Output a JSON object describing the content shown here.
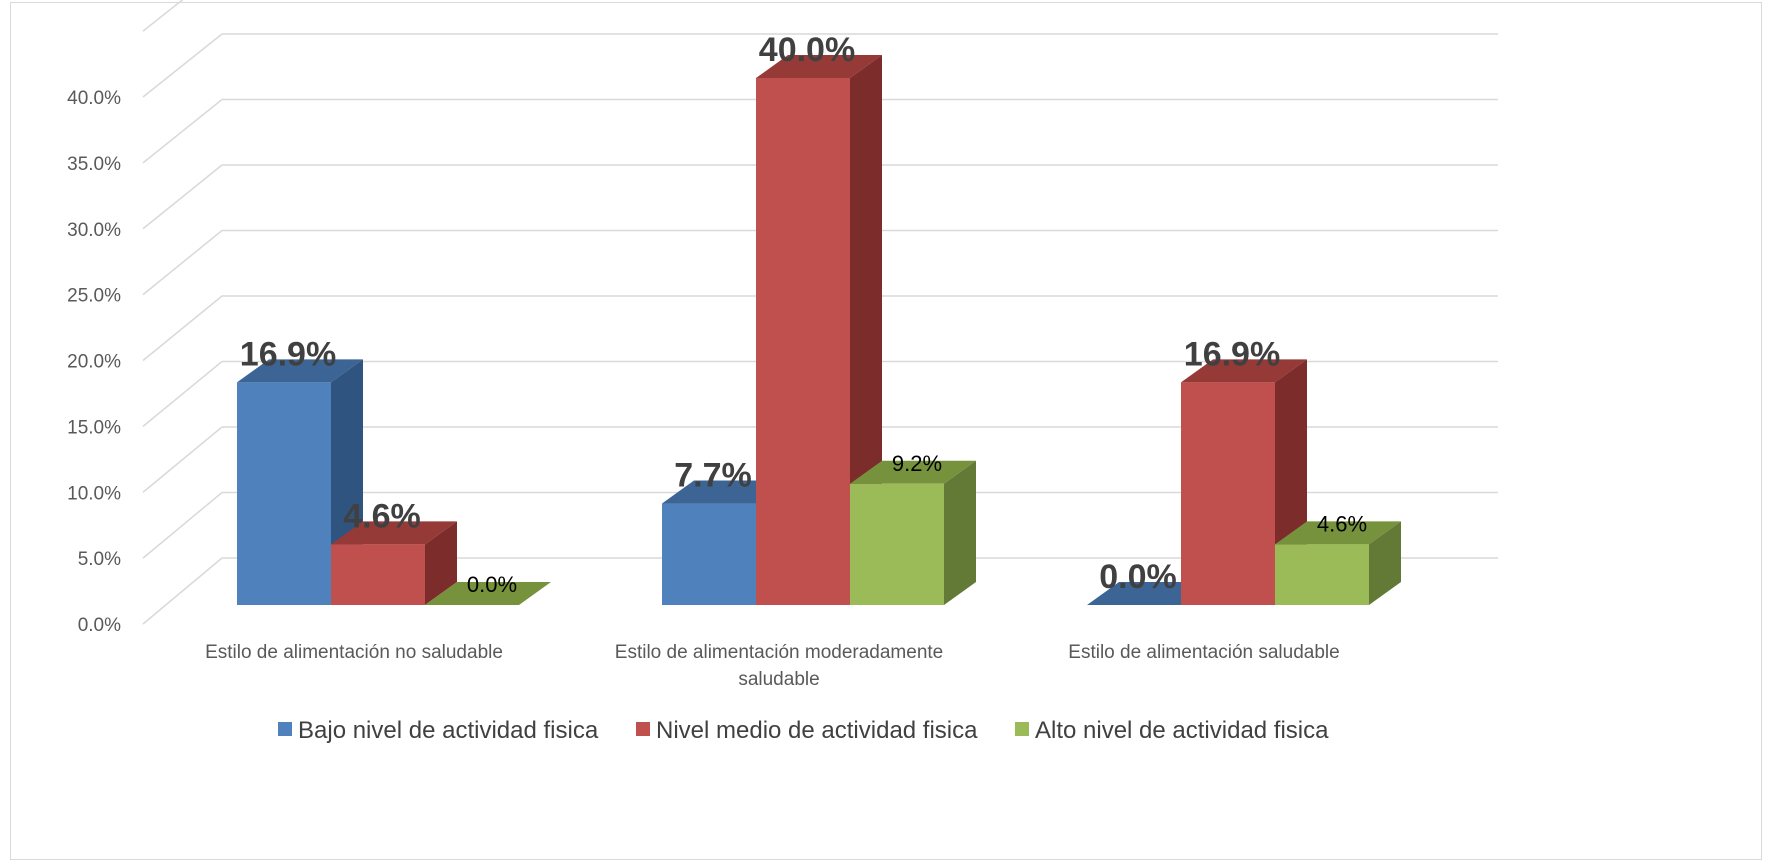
{
  "chart_data": {
    "type": "bar",
    "three_d": true,
    "categories": [
      "Estilo de alimentación no saludable",
      "Estilo de alimentación moderadamente saludable",
      "Estilo de alimentación saludable"
    ],
    "category_lines": [
      [
        "Estilo de alimentación no saludable"
      ],
      [
        "Estilo de alimentación moderadamente",
        "saludable"
      ],
      [
        "Estilo de alimentación saludable"
      ]
    ],
    "series": [
      {
        "name": "Bajo nivel de actividad fisica",
        "values": [
          16.9,
          7.7,
          0.0
        ],
        "labels": [
          "16.9%",
          "7.7%",
          "0.0%"
        ],
        "label_style": "big",
        "color": "#4f81bd",
        "side_color": "#2f5480",
        "top_color": "#3c6596"
      },
      {
        "name": "Nivel medio de actividad fisica",
        "values": [
          4.6,
          40.0,
          16.9
        ],
        "labels": [
          "4.6%",
          "40.0%",
          "16.9%"
        ],
        "label_style": "big",
        "color": "#c0504d",
        "side_color": "#7b2c2b",
        "top_color": "#963a38"
      },
      {
        "name": "Alto nivel de actividad fisica",
        "values": [
          0.0,
          9.2,
          4.6
        ],
        "labels": [
          "0.0%",
          "9.2%",
          "4.6%"
        ],
        "label_style": "small",
        "color": "#9bbb59",
        "side_color": "#637a36",
        "top_color": "#76923c"
      }
    ],
    "y_ticks": [
      "0.0%",
      "5.0%",
      "10.0%",
      "15.0%",
      "20.0%",
      "25.0%",
      "30.0%",
      "35.0%",
      "40.0%"
    ],
    "ylim": [
      0,
      40
    ],
    "y_unit": "%",
    "grid": true,
    "legend_position": "bottom",
    "title": "",
    "xlabel": "",
    "ylabel": ""
  }
}
